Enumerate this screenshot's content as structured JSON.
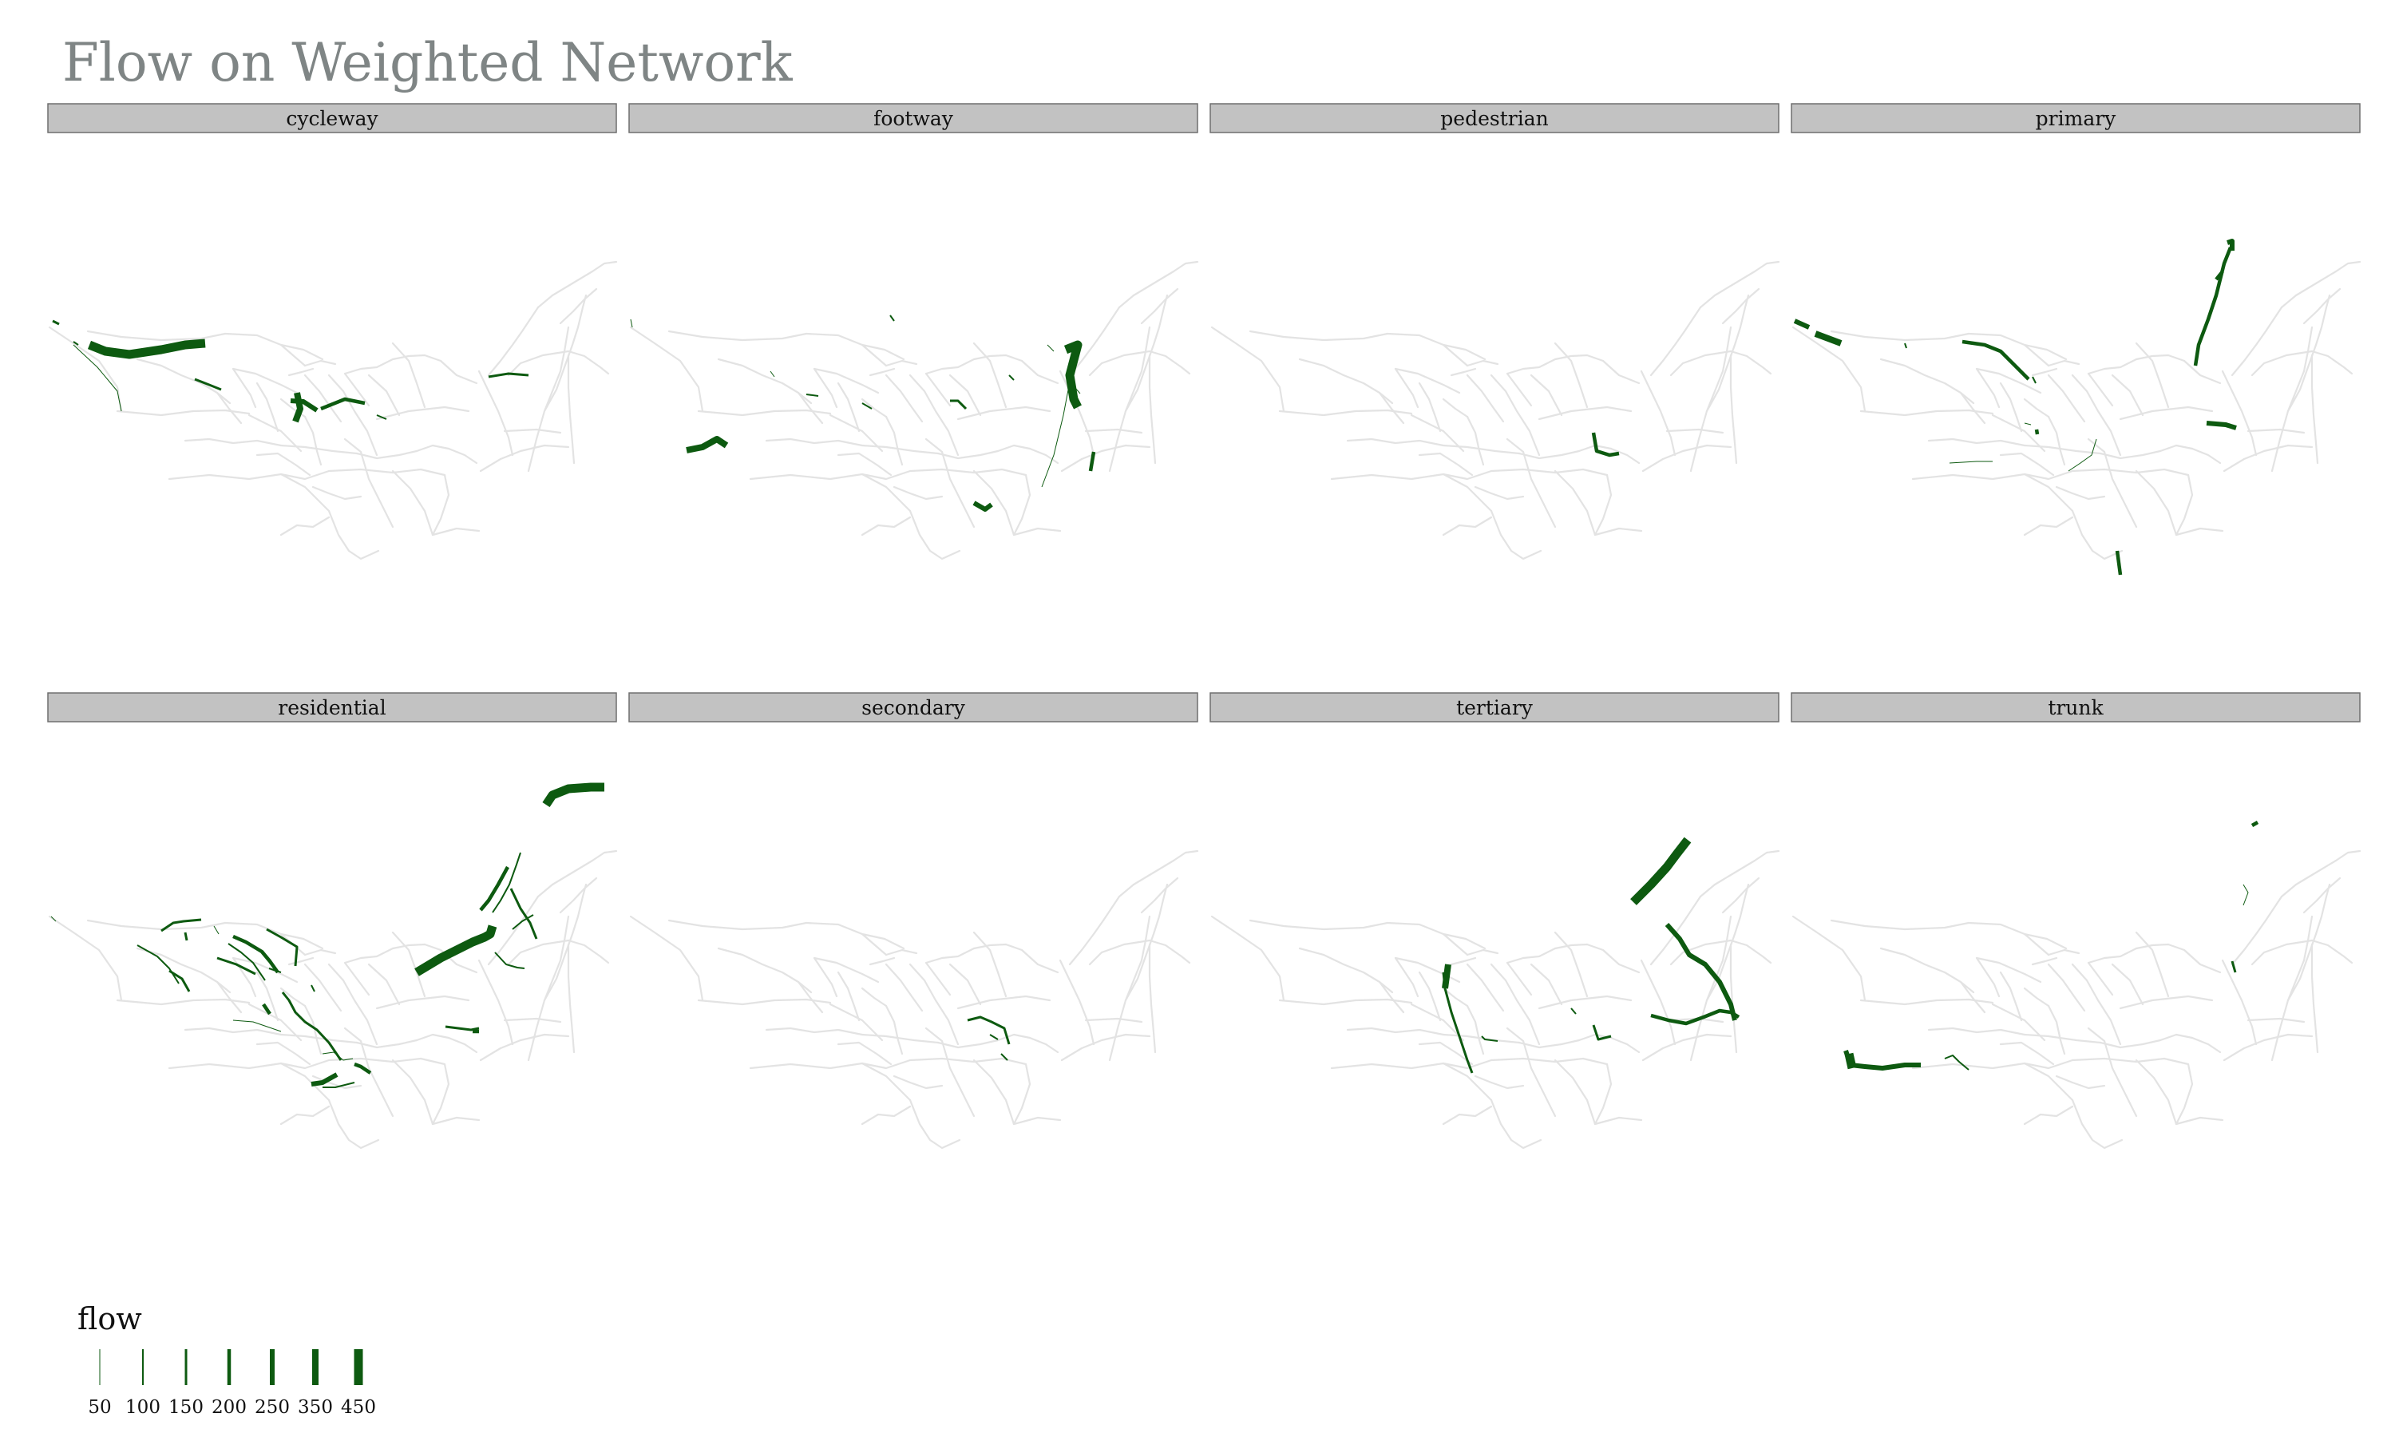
{
  "chart_data": {
    "type": "network_map_facets",
    "title": "Flow on Weighted Network",
    "colors": {
      "flow": "#0d5a10",
      "network": "#e3e3e3",
      "strip_fill": "#c2c2c2",
      "strip_border": "#6f6f6f",
      "title": "#7f8585"
    },
    "facets": [
      "cycleway",
      "footway",
      "pedestrian",
      "primary",
      "residential",
      "secondary",
      "tertiary",
      "trunk"
    ],
    "legend": {
      "title": "flow",
      "values": [
        50,
        100,
        150,
        200,
        250,
        350,
        450
      ],
      "labels": [
        "50",
        "100",
        "150",
        "200",
        "250",
        "350",
        "450"
      ]
    },
    "highlighted_segment_counts": {
      "cycleway": 10,
      "footway": 13,
      "pedestrian": 1,
      "primary": 14,
      "residential": 24,
      "secondary": 3,
      "tertiary": 8,
      "trunk": 4
    }
  }
}
